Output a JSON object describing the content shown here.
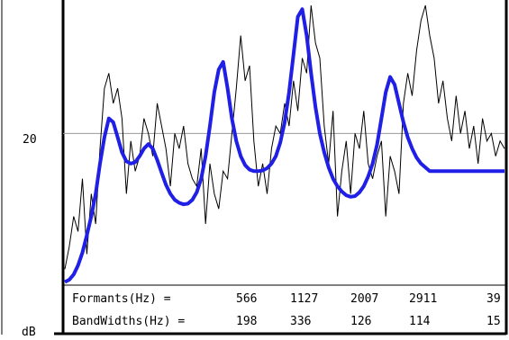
{
  "chart_data": {
    "type": "line",
    "xlabel": "",
    "ylabel": "dB",
    "y_ticks": [
      {
        "value": 20,
        "label": "20"
      }
    ],
    "reference_line_y": 20,
    "ylim": [
      0,
      37
    ],
    "xlim": [
      0,
      100
    ],
    "grid": false,
    "legend": "none",
    "colors": {
      "spectrum": "#000000",
      "envelope": "#1f1fe6",
      "reference": "#999999",
      "frame": "#000000"
    },
    "series": [
      {
        "style": "thin-black",
        "x": [
          0,
          1,
          2,
          3,
          4,
          5,
          6,
          7,
          8,
          9,
          10,
          11,
          12,
          13,
          14,
          15,
          16,
          17,
          18,
          19,
          20,
          21,
          22,
          23,
          24,
          25,
          26,
          27,
          28,
          29,
          30,
          31,
          32,
          33,
          34,
          35,
          36,
          37,
          38,
          39,
          40,
          41,
          42,
          43,
          44,
          45,
          46,
          47,
          48,
          49,
          50,
          51,
          52,
          53,
          54,
          55,
          56,
          57,
          58,
          59,
          60,
          61,
          62,
          63,
          64,
          65,
          66,
          67,
          68,
          69,
          70,
          71,
          72,
          73,
          74,
          75,
          76,
          77,
          78,
          79,
          80,
          81,
          82,
          83,
          84,
          85,
          86,
          87,
          88,
          89,
          90,
          91,
          92,
          93,
          94,
          95,
          96,
          97,
          98,
          99,
          100
        ],
        "values": [
          2,
          5,
          9,
          7,
          14,
          4,
          12,
          8,
          18,
          26,
          28,
          24,
          26,
          22,
          12,
          19,
          15,
          17,
          22,
          20,
          17,
          24,
          21,
          18,
          13,
          20,
          18,
          21,
          16,
          14,
          13,
          18,
          8,
          16,
          12,
          10,
          15,
          14,
          20,
          26,
          33,
          27,
          29,
          19,
          13,
          16,
          12,
          18,
          21,
          20,
          24,
          21,
          27,
          23,
          30,
          28,
          37,
          32,
          30,
          21,
          16,
          23,
          9,
          15,
          19,
          12,
          20,
          18,
          23,
          16,
          14,
          17,
          19,
          9,
          17,
          15,
          12,
          24,
          28,
          25,
          31,
          35,
          37,
          33,
          30,
          24,
          27,
          22,
          19,
          25,
          20,
          23,
          18,
          21,
          16,
          22,
          19,
          20,
          17,
          19,
          18
        ]
      },
      {
        "style": "thick-blue",
        "x": [
          0,
          1,
          2,
          3,
          4,
          5,
          6,
          7,
          8,
          9,
          10,
          11,
          12,
          13,
          14,
          15,
          16,
          17,
          18,
          19,
          20,
          21,
          22,
          23,
          24,
          25,
          26,
          27,
          28,
          29,
          30,
          31,
          32,
          33,
          34,
          35,
          36,
          37,
          38,
          39,
          40,
          41,
          42,
          43,
          44,
          45,
          46,
          47,
          48,
          49,
          50,
          51,
          52,
          53,
          54,
          55,
          56,
          57,
          58,
          59,
          60,
          61,
          62,
          63,
          64,
          65,
          66,
          67,
          68,
          69,
          70,
          71,
          72,
          73,
          74,
          75,
          76,
          77,
          78,
          79,
          80,
          81,
          82,
          83,
          84,
          85,
          86,
          87,
          88,
          89,
          90,
          91,
          92,
          93,
          94,
          95,
          96,
          97,
          98,
          99,
          100
        ],
        "values": [
          0.3,
          0.6,
          1.3,
          2.5,
          4.2,
          6.5,
          9,
          12,
          16,
          19.5,
          22,
          21.5,
          19.5,
          17.5,
          16.3,
          16,
          16.2,
          17,
          18,
          18.6,
          18,
          16.5,
          14.8,
          13.2,
          12,
          11.2,
          10.8,
          10.6,
          10.7,
          11.2,
          12.2,
          14,
          17,
          21,
          25.5,
          28.5,
          29.5,
          26,
          22,
          19,
          17,
          15.8,
          15.2,
          15,
          15,
          15.1,
          15.4,
          16,
          17,
          18.8,
          21.5,
          25.5,
          30.5,
          35.5,
          36.5,
          33,
          28,
          23.5,
          20,
          17.5,
          15.5,
          14,
          13,
          12.3,
          11.8,
          11.6,
          11.7,
          12.2,
          13,
          14.3,
          16,
          18.5,
          22,
          25.5,
          27.5,
          26.5,
          24,
          21.5,
          19.5,
          18,
          16.8,
          16,
          15.5,
          15,
          15,
          15,
          15,
          15,
          15,
          15,
          15,
          15,
          15,
          15,
          15,
          15,
          15,
          15,
          15,
          15,
          15
        ]
      }
    ],
    "table": {
      "formants_label": "Formants(Hz) =",
      "formants": [
        "566",
        "1127",
        "2007",
        "2911",
        "39"
      ],
      "bandwidths_label": "BandWidths(Hz) =",
      "bandwidths": [
        "198",
        "336",
        "126",
        "114",
        "15"
      ]
    }
  }
}
